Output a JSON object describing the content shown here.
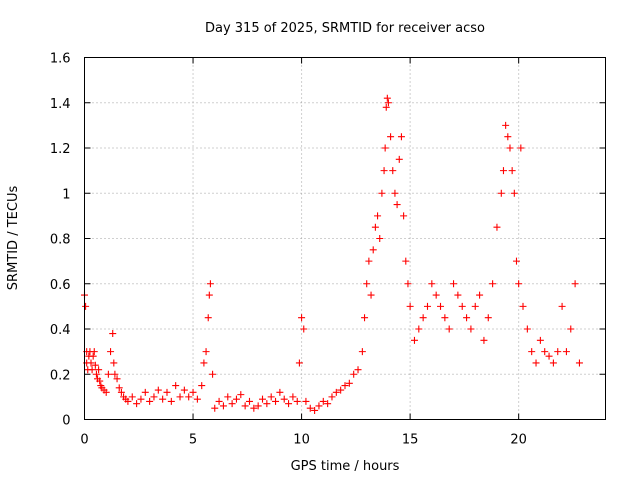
{
  "chart_data": {
    "type": "scatter",
    "title": "Day 315 of 2025, SRMTID for receiver acso",
    "xlabel": "GPS time / hours",
    "ylabel": "SRMTID / TECUs",
    "xlim": [
      0,
      24
    ],
    "ylim": [
      0,
      1.6
    ],
    "xticks": [
      0,
      5,
      10,
      15,
      20
    ],
    "xtick_labels": [
      "0",
      "5",
      "10",
      "15",
      "20"
    ],
    "yticks": [
      0,
      0.2,
      0.4,
      0.6,
      0.8,
      1.0,
      1.2,
      1.4,
      1.6
    ],
    "ytick_labels": [
      "0",
      "0.2",
      "0.4",
      "0.6",
      "0.8",
      "1",
      "1.2",
      "1.4",
      "1.6"
    ],
    "grid": true,
    "marker": "plus",
    "color": "#ff0000",
    "series": [
      {
        "name": "SRMTID",
        "x": [
          0.0,
          0.05,
          0.1,
          0.1,
          0.15,
          0.2,
          0.25,
          0.3,
          0.35,
          0.4,
          0.45,
          0.5,
          0.55,
          0.6,
          0.65,
          0.7,
          0.75,
          0.8,
          0.9,
          1.0,
          1.1,
          1.2,
          1.3,
          1.35,
          1.4,
          1.5,
          1.6,
          1.7,
          1.8,
          1.9,
          2.0,
          2.2,
          2.4,
          2.6,
          2.8,
          3.0,
          3.2,
          3.4,
          3.6,
          3.8,
          4.0,
          4.2,
          4.4,
          4.6,
          4.8,
          5.0,
          5.2,
          5.4,
          5.5,
          5.6,
          5.7,
          5.75,
          5.8,
          5.9,
          6.0,
          6.2,
          6.4,
          6.6,
          6.8,
          7.0,
          7.2,
          7.4,
          7.6,
          7.8,
          8.0,
          8.2,
          8.4,
          8.6,
          8.8,
          9.0,
          9.2,
          9.4,
          9.6,
          9.8,
          9.9,
          10.0,
          10.1,
          10.2,
          10.4,
          10.6,
          10.8,
          11.0,
          11.2,
          11.4,
          11.6,
          11.8,
          12.0,
          12.2,
          12.4,
          12.6,
          12.8,
          12.9,
          13.0,
          13.1,
          13.2,
          13.3,
          13.4,
          13.5,
          13.6,
          13.7,
          13.8,
          13.85,
          13.9,
          13.95,
          14.0,
          14.1,
          14.2,
          14.3,
          14.4,
          14.5,
          14.6,
          14.7,
          14.8,
          14.9,
          15.0,
          15.2,
          15.4,
          15.6,
          15.8,
          16.0,
          16.2,
          16.4,
          16.6,
          16.8,
          17.0,
          17.2,
          17.4,
          17.6,
          17.8,
          18.0,
          18.2,
          18.4,
          18.6,
          18.8,
          19.0,
          19.2,
          19.3,
          19.4,
          19.5,
          19.6,
          19.7,
          19.8,
          19.9,
          20.0,
          20.1,
          20.2,
          20.4,
          20.6,
          20.8,
          21.0,
          21.2,
          21.4,
          21.6,
          21.8,
          22.0,
          22.2,
          22.4,
          22.6,
          22.8
        ],
        "y": [
          0.55,
          0.5,
          0.3,
          0.25,
          0.22,
          0.28,
          0.3,
          0.25,
          0.22,
          0.28,
          0.3,
          0.24,
          0.2,
          0.18,
          0.22,
          0.17,
          0.15,
          0.14,
          0.13,
          0.12,
          0.2,
          0.3,
          0.38,
          0.25,
          0.2,
          0.18,
          0.14,
          0.12,
          0.1,
          0.09,
          0.08,
          0.1,
          0.07,
          0.09,
          0.12,
          0.08,
          0.1,
          0.13,
          0.09,
          0.12,
          0.08,
          0.15,
          0.1,
          0.13,
          0.1,
          0.12,
          0.09,
          0.15,
          0.25,
          0.3,
          0.45,
          0.55,
          0.6,
          0.2,
          0.05,
          0.08,
          0.06,
          0.1,
          0.07,
          0.09,
          0.11,
          0.06,
          0.08,
          0.05,
          0.06,
          0.09,
          0.07,
          0.1,
          0.08,
          0.12,
          0.09,
          0.07,
          0.1,
          0.08,
          0.25,
          0.45,
          0.4,
          0.08,
          0.05,
          0.04,
          0.06,
          0.08,
          0.07,
          0.1,
          0.12,
          0.13,
          0.15,
          0.16,
          0.2,
          0.22,
          0.3,
          0.45,
          0.6,
          0.7,
          0.55,
          0.75,
          0.85,
          0.9,
          0.8,
          1.0,
          1.1,
          1.2,
          1.38,
          1.42,
          1.4,
          1.25,
          1.1,
          1.0,
          0.95,
          1.15,
          1.25,
          0.9,
          0.7,
          0.6,
          0.5,
          0.35,
          0.4,
          0.45,
          0.5,
          0.6,
          0.55,
          0.5,
          0.45,
          0.4,
          0.6,
          0.55,
          0.5,
          0.45,
          0.4,
          0.5,
          0.55,
          0.35,
          0.45,
          0.6,
          0.85,
          1.0,
          1.1,
          1.3,
          1.25,
          1.2,
          1.1,
          1.0,
          0.7,
          0.6,
          1.2,
          0.5,
          0.4,
          0.3,
          0.25,
          0.35,
          0.3,
          0.28,
          0.25,
          0.3,
          0.5,
          0.3,
          0.4,
          0.6,
          0.25
        ]
      }
    ]
  }
}
